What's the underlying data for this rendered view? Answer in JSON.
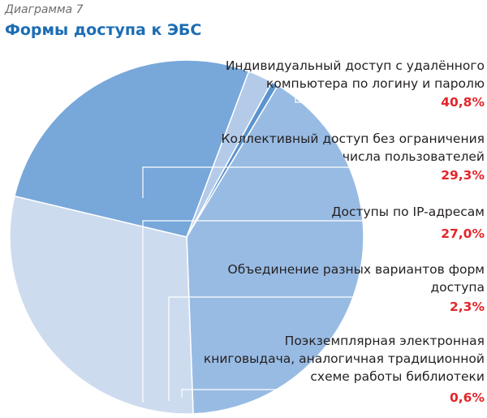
{
  "header": {
    "subtitle": "Диаграмма 7",
    "title": "Формы доступа к ЭБС"
  },
  "chart_data": {
    "type": "pie",
    "title": "Формы доступа к ЭБС",
    "slices": [
      {
        "lines": [
          "Индивидуальный доступ с удалённого",
          "компьютера по логину и паролю"
        ],
        "value_label": "40,8%",
        "value": 40.8,
        "color": "#98bbe3"
      },
      {
        "lines": [
          "Коллективный доступ без ограничения",
          "числа пользователей"
        ],
        "value_label": "29,3%",
        "value": 29.3,
        "color": "#cddbef"
      },
      {
        "lines": [
          "Доступы по IP-адресам"
        ],
        "value_label": "27,0%",
        "value": 27.0,
        "color": "#78a7da"
      },
      {
        "lines": [
          "Объединение разных вариантов форм",
          "доступа"
        ],
        "value_label": "2,3%",
        "value": 2.3,
        "color": "#b3cbe9"
      },
      {
        "lines": [
          "Поэкземплярная электронная",
          "книговыдача, аналогичная традиционной",
          "схеме работы библиотеки"
        ],
        "value_label": "0,6%",
        "value": 0.6,
        "color": "#5a93cf"
      }
    ],
    "value_color": "#e3262b"
  }
}
